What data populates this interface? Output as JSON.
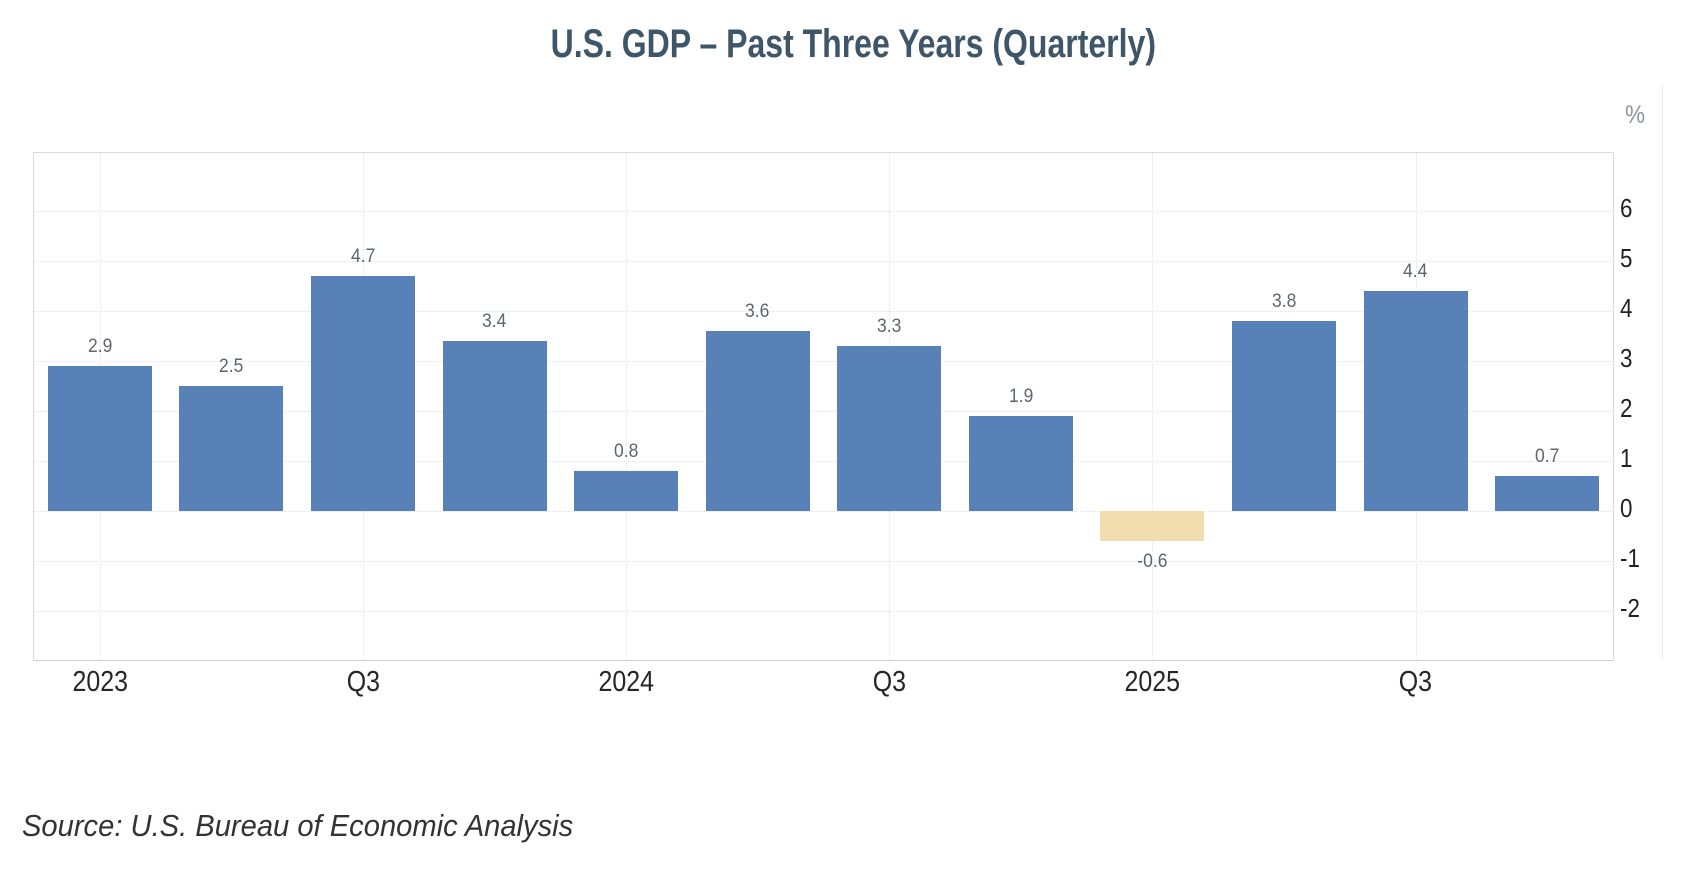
{
  "title": "U.S. GDP – Past Three Years (Quarterly)",
  "unit_label": "%",
  "source": "Source: U.S. Bureau of Economic Analysis",
  "colors": {
    "positive_bar": "#5881b8",
    "negative_bar": "#f2ddae",
    "title_text": "#3e5668",
    "axis_text": "#262626",
    "value_label_text": "#5d6670",
    "gridline": "#e4e4e4"
  },
  "chart_data": {
    "type": "bar",
    "title": "U.S. GDP – Past Three Years (Quarterly)",
    "ylabel": "%",
    "xlabel": "",
    "categories": [
      "2023 Q1",
      "2023 Q2",
      "2023 Q3",
      "2023 Q4",
      "2024 Q1",
      "2024 Q2",
      "2024 Q3",
      "2024 Q4",
      "2025 Q1",
      "2025 Q2",
      "2025 Q3",
      "2025 Q4"
    ],
    "values": [
      2.9,
      2.5,
      4.7,
      3.4,
      0.8,
      3.6,
      3.3,
      1.9,
      -0.6,
      3.8,
      4.4,
      0.7
    ],
    "value_labels": [
      "2.9",
      "2.5",
      "4.7",
      "3.4",
      "0.8",
      "3.6",
      "3.3",
      "1.9",
      "-0.6",
      "3.8",
      "4.4",
      "0.7"
    ],
    "xtick_labels": [
      "2023",
      "Q3",
      "2024",
      "Q3",
      "2025",
      "Q3"
    ],
    "xtick_bar_indices": [
      0,
      2,
      4,
      6,
      8,
      10
    ],
    "yticks": [
      6,
      5,
      4,
      3,
      2,
      1,
      0,
      -1,
      -2
    ],
    "ylim": [
      -3.0,
      7.14
    ],
    "grid": "dotted",
    "legend_position": "none",
    "y_axis_side": "right",
    "bar_color_positive": "#5881b8",
    "bar_color_negative": "#f2ddae",
    "source": "Source: U.S. Bureau of Economic Analysis"
  }
}
